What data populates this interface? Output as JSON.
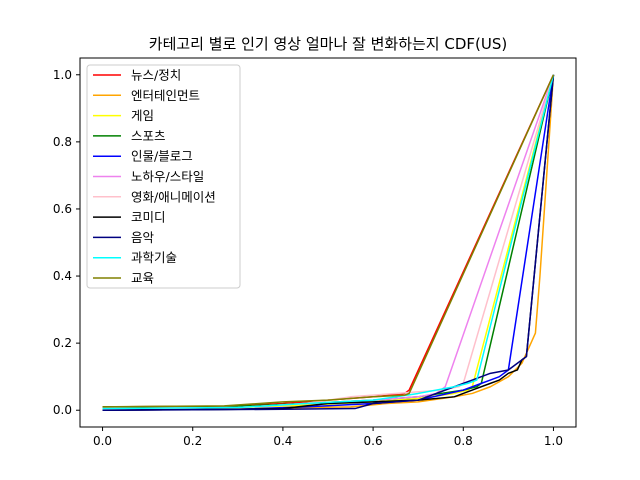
{
  "chart_data": {
    "type": "line",
    "title": "카테고리 별로 인기 영상 얼마나 잘 변화하는지 CDF(US)",
    "xlabel": "",
    "ylabel": "",
    "xlim": [
      -0.05,
      1.05
    ],
    "ylim": [
      -0.05,
      1.05
    ],
    "xticks": [
      "0.0",
      "0.2",
      "0.4",
      "0.6",
      "0.8",
      "1.0"
    ],
    "yticks": [
      "0.0",
      "0.2",
      "0.4",
      "0.6",
      "0.8",
      "1.0"
    ],
    "grid": false,
    "legend_position": "top-left",
    "series": [
      {
        "name": "뉴스/정치",
        "color": "#ff0000",
        "x": [
          0.0,
          0.27,
          0.4,
          0.5,
          0.6,
          0.67,
          0.68,
          1.0
        ],
        "y": [
          0.01,
          0.012,
          0.02,
          0.03,
          0.04,
          0.05,
          0.06,
          1.0
        ]
      },
      {
        "name": "엔터테인먼트",
        "color": "#ffa500",
        "x": [
          0.0,
          0.3,
          0.45,
          0.55,
          0.63,
          0.7,
          0.78,
          0.82,
          0.86,
          0.9,
          0.93,
          0.95,
          0.96,
          0.97,
          0.98,
          0.99,
          1.0
        ],
        "y": [
          0.0,
          0.003,
          0.008,
          0.01,
          0.02,
          0.025,
          0.04,
          0.05,
          0.07,
          0.1,
          0.14,
          0.2,
          0.23,
          0.4,
          0.6,
          0.8,
          1.0
        ]
      },
      {
        "name": "게임",
        "color": "#ffff00",
        "x": [
          0.0,
          0.3,
          0.45,
          0.6,
          0.7,
          0.78,
          0.81,
          0.82,
          1.0
        ],
        "y": [
          0.005,
          0.008,
          0.015,
          0.025,
          0.035,
          0.05,
          0.06,
          0.07,
          1.0
        ]
      },
      {
        "name": "스포츠",
        "color": "#008000",
        "x": [
          0.0,
          0.3,
          0.45,
          0.6,
          0.7,
          0.8,
          0.83,
          0.84,
          1.0
        ],
        "y": [
          0.01,
          0.012,
          0.02,
          0.03,
          0.04,
          0.06,
          0.07,
          0.08,
          1.0
        ]
      },
      {
        "name": "인물/블로그",
        "color": "#0000ff",
        "x": [
          0.0,
          0.3,
          0.45,
          0.6,
          0.7,
          0.8,
          0.84,
          0.86,
          0.88,
          0.9,
          1.0
        ],
        "y": [
          0.0,
          0.003,
          0.01,
          0.02,
          0.03,
          0.06,
          0.08,
          0.09,
          0.1,
          0.12,
          1.0
        ]
      },
      {
        "name": "노하우/스타일",
        "color": "#ee82ee",
        "x": [
          0.0,
          0.3,
          0.45,
          0.6,
          0.7,
          0.74,
          0.76,
          1.0
        ],
        "y": [
          0.005,
          0.008,
          0.02,
          0.03,
          0.04,
          0.05,
          0.07,
          1.0
        ]
      },
      {
        "name": "영화/애니메이션",
        "color": "#ffc0cb",
        "x": [
          0.0,
          0.3,
          0.45,
          0.55,
          0.65,
          0.75,
          0.79,
          0.8,
          1.0
        ],
        "y": [
          0.005,
          0.008,
          0.02,
          0.04,
          0.05,
          0.06,
          0.07,
          0.08,
          1.0
        ]
      },
      {
        "name": "코미디",
        "color": "#000000",
        "x": [
          0.0,
          0.3,
          0.4,
          0.5,
          0.6,
          0.7,
          0.78,
          0.82,
          0.86,
          0.88,
          0.9,
          0.92,
          0.93,
          0.94,
          0.95,
          1.0
        ],
        "y": [
          0.0,
          0.003,
          0.005,
          0.02,
          0.025,
          0.03,
          0.04,
          0.06,
          0.08,
          0.09,
          0.11,
          0.12,
          0.15,
          0.16,
          0.3,
          1.0
        ]
      },
      {
        "name": "음악",
        "color": "#000080",
        "x": [
          0.0,
          0.3,
          0.4,
          0.56,
          0.6,
          0.7,
          0.78,
          0.82,
          0.86,
          0.9,
          0.92,
          0.94,
          1.0
        ],
        "y": [
          0.0,
          0.002,
          0.003,
          0.005,
          0.02,
          0.03,
          0.07,
          0.09,
          0.11,
          0.12,
          0.14,
          0.16,
          1.0
        ]
      },
      {
        "name": "과학기술",
        "color": "#00ffff",
        "x": [
          0.0,
          0.3,
          0.45,
          0.6,
          0.7,
          0.78,
          0.81,
          0.83,
          1.0
        ],
        "y": [
          0.005,
          0.008,
          0.02,
          0.03,
          0.05,
          0.07,
          0.08,
          0.09,
          1.0
        ]
      },
      {
        "name": "교육",
        "color": "#808000",
        "x": [
          0.0,
          0.27,
          0.4,
          0.5,
          0.6,
          0.67,
          0.68,
          1.0
        ],
        "y": [
          0.01,
          0.013,
          0.025,
          0.03,
          0.04,
          0.045,
          0.05,
          1.0
        ]
      }
    ]
  }
}
